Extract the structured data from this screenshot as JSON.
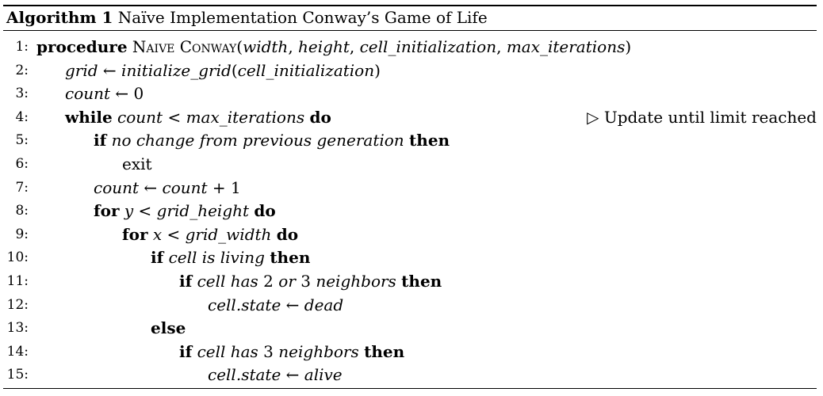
{
  "caption": {
    "label": "Algorithm 1",
    "title": "Naïve Implementation Conway’s Game of Life"
  },
  "lines": [
    {
      "num": "1:",
      "segments": [
        {
          "t": "procedure",
          "s": "kw"
        },
        {
          "t": " "
        },
        {
          "t": "Naive Conway",
          "s": "sc"
        },
        {
          "t": "("
        },
        {
          "t": "width",
          "s": "it"
        },
        {
          "t": ", "
        },
        {
          "t": "height",
          "s": "it"
        },
        {
          "t": ", "
        },
        {
          "t": "cell_initialization",
          "s": "it"
        },
        {
          "t": ", "
        },
        {
          "t": "max_iterations",
          "s": "it"
        },
        {
          "t": ")"
        }
      ]
    },
    {
      "num": "2:",
      "segments": [
        {
          "t": "grid",
          "s": "it"
        },
        {
          "t": " ← "
        },
        {
          "t": "initialize_grid",
          "s": "it"
        },
        {
          "t": "("
        },
        {
          "t": "cell_initialization",
          "s": "it"
        },
        {
          "t": ")"
        }
      ]
    },
    {
      "num": "3:",
      "segments": [
        {
          "t": "count",
          "s": "it"
        },
        {
          "t": " ← 0"
        }
      ]
    },
    {
      "num": "4:",
      "segments": [
        {
          "t": "while",
          "s": "kw"
        },
        {
          "t": " "
        },
        {
          "t": "count",
          "s": "it"
        },
        {
          "t": " < "
        },
        {
          "t": "max_iterations",
          "s": "it"
        },
        {
          "t": " "
        },
        {
          "t": "do",
          "s": "kw"
        }
      ],
      "comment": "▷ Update until limit reached"
    },
    {
      "num": "5:",
      "segments": [
        {
          "t": "if",
          "s": "kw"
        },
        {
          "t": " "
        },
        {
          "t": "no change from previous generation",
          "s": "it"
        },
        {
          "t": " "
        },
        {
          "t": "then",
          "s": "kw"
        }
      ]
    },
    {
      "num": "6:",
      "segments": [
        {
          "t": "exit"
        }
      ]
    },
    {
      "num": "7:",
      "segments": [
        {
          "t": "count",
          "s": "it"
        },
        {
          "t": " ← "
        },
        {
          "t": "count",
          "s": "it"
        },
        {
          "t": " + 1"
        }
      ]
    },
    {
      "num": "8:",
      "segments": [
        {
          "t": "for",
          "s": "kw"
        },
        {
          "t": " "
        },
        {
          "t": "y",
          "s": "it"
        },
        {
          "t": " < "
        },
        {
          "t": "grid_height",
          "s": "it"
        },
        {
          "t": " "
        },
        {
          "t": "do",
          "s": "kw"
        }
      ]
    },
    {
      "num": "9:",
      "segments": [
        {
          "t": "for",
          "s": "kw"
        },
        {
          "t": " "
        },
        {
          "t": "x",
          "s": "it"
        },
        {
          "t": " < "
        },
        {
          "t": "grid_width",
          "s": "it"
        },
        {
          "t": " "
        },
        {
          "t": "do",
          "s": "kw"
        }
      ]
    },
    {
      "num": "10:",
      "segments": [
        {
          "t": "if",
          "s": "kw"
        },
        {
          "t": " "
        },
        {
          "t": "cell is living",
          "s": "it"
        },
        {
          "t": " "
        },
        {
          "t": "then",
          "s": "kw"
        }
      ]
    },
    {
      "num": "11:",
      "segments": [
        {
          "t": "if",
          "s": "kw"
        },
        {
          "t": " "
        },
        {
          "t": "cell has",
          "s": "it"
        },
        {
          "t": " 2 "
        },
        {
          "t": "or",
          "s": "it"
        },
        {
          "t": " 3 "
        },
        {
          "t": "neighbors",
          "s": "it"
        },
        {
          "t": " "
        },
        {
          "t": "then",
          "s": "kw"
        }
      ]
    },
    {
      "num": "12:",
      "segments": [
        {
          "t": "cell.state",
          "s": "it"
        },
        {
          "t": " ← "
        },
        {
          "t": "dead",
          "s": "it"
        }
      ]
    },
    {
      "num": "13:",
      "segments": [
        {
          "t": "else",
          "s": "kw"
        }
      ]
    },
    {
      "num": "14:",
      "segments": [
        {
          "t": "if",
          "s": "kw"
        },
        {
          "t": " "
        },
        {
          "t": "cell has",
          "s": "it"
        },
        {
          "t": " 3 "
        },
        {
          "t": "neighbors",
          "s": "it"
        },
        {
          "t": " "
        },
        {
          "t": "then",
          "s": "kw"
        }
      ]
    },
    {
      "num": "15:",
      "segments": [
        {
          "t": "cell.state",
          "s": "it"
        },
        {
          "t": " ← "
        },
        {
          "t": "alive",
          "s": "it"
        }
      ]
    }
  ]
}
